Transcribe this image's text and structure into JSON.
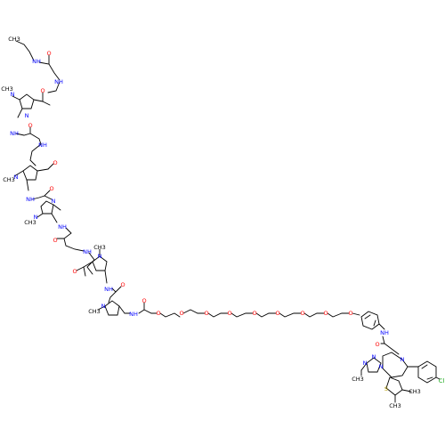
{
  "molecule": {
    "colors": {
      "bond": "#000000",
      "N": "#0000ff",
      "O": "#ff0000",
      "S": "#b8a000",
      "Cl": "#00a000",
      "C": "#000000"
    },
    "labels": {
      "nh1": "NH",
      "o1": "O",
      "nh2": "NH",
      "o2": "O",
      "n1": "N",
      "me1": "CH3",
      "n2": "N",
      "nh3": "NH",
      "o3": "O",
      "nh4": "NH",
      "o4": "O",
      "n3": "N",
      "me2": "CH3",
      "nh5": "NH",
      "o5": "O",
      "n4": "N",
      "n5": "N",
      "me3": "CH3",
      "nh6": "NH",
      "o6": "O",
      "nh7": "NH",
      "o7": "O",
      "n6": "N",
      "me4": "CH3",
      "nh8": "NH",
      "o8": "O",
      "n7": "N",
      "me5": "CH3",
      "nh9": "NH",
      "o9": "O",
      "peg1": "O",
      "peg2": "O",
      "peg3": "O",
      "peg4": "O",
      "peg5": "O",
      "peg6": "O",
      "peg7": "O",
      "peg8": "O",
      "peg9": "O",
      "nh10": "NH",
      "o10": "O",
      "tn1": "N",
      "tn2": "N",
      "tn3": "N",
      "tn4": "N",
      "me6": "CH3",
      "s1": "S",
      "me7": "CH3",
      "me8": "CH3",
      "cl": "Cl"
    }
  }
}
